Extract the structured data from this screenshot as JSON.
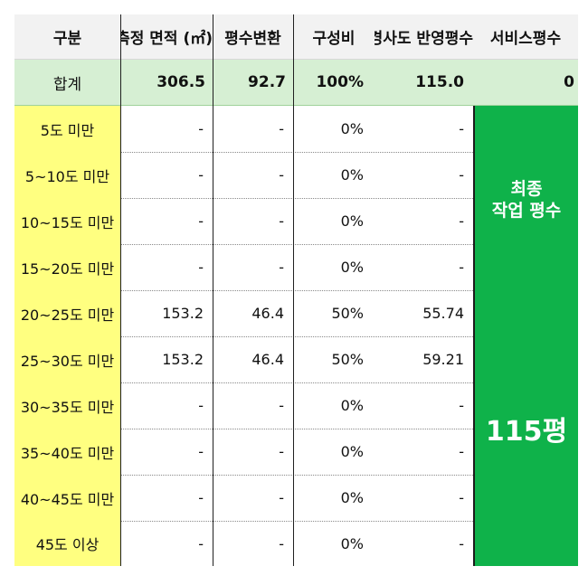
{
  "headers": [
    "구분",
    "측정 면적 (㎡)",
    "평수변환",
    "구성비",
    "경사도 반영평수",
    "서비스평수"
  ],
  "total": {
    "label": "합계",
    "area": "306.5",
    "pyeong": "92.7",
    "ratio": "100%",
    "slope_pyeong": "115.0",
    "service": "0"
  },
  "rows": [
    {
      "label": "5도 미만",
      "area": "-",
      "pyeong": "-",
      "ratio": "0%",
      "slope": "-"
    },
    {
      "label": "5~10도 미만",
      "area": "-",
      "pyeong": "-",
      "ratio": "0%",
      "slope": "-"
    },
    {
      "label": "10~15도 미만",
      "area": "-",
      "pyeong": "-",
      "ratio": "0%",
      "slope": "-"
    },
    {
      "label": "15~20도 미만",
      "area": "-",
      "pyeong": "-",
      "ratio": "0%",
      "slope": "-"
    },
    {
      "label": "20~25도 미만",
      "area": "153.2",
      "pyeong": "46.4",
      "ratio": "50%",
      "slope": "55.74"
    },
    {
      "label": "25~30도 미만",
      "area": "153.2",
      "pyeong": "46.4",
      "ratio": "50%",
      "slope": "59.21"
    },
    {
      "label": "30~35도 미만",
      "area": "-",
      "pyeong": "-",
      "ratio": "0%",
      "slope": "-"
    },
    {
      "label": "35~40도 미만",
      "area": "-",
      "pyeong": "-",
      "ratio": "0%",
      "slope": "-"
    },
    {
      "label": "40~45도 미만",
      "area": "-",
      "pyeong": "-",
      "ratio": "0%",
      "slope": "-"
    },
    {
      "label": "45도 이상",
      "area": "-",
      "pyeong": "-",
      "ratio": "0%",
      "slope": "-"
    }
  ],
  "final_box": {
    "line1": "최종",
    "line2": "작업 평수",
    "value": "115평"
  }
}
